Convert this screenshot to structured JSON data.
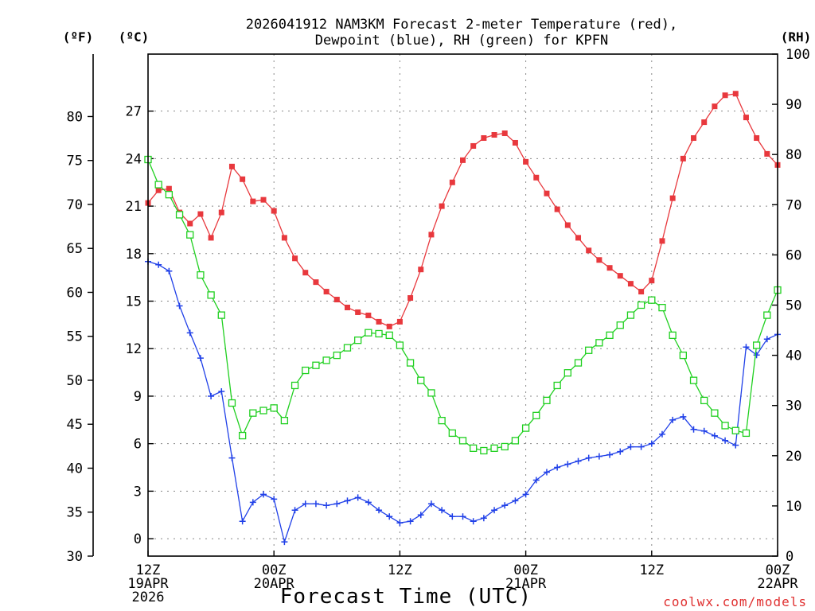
{
  "chart_data": {
    "type": "line",
    "title_line1": "2026041912 NAM3KM Forecast 2-meter Temperature (red),",
    "title_line2": "Dewpoint (blue), RH (green) for KPFN",
    "xlabel": "Forecast Time (UTC)",
    "credit": "coolwx.com/models",
    "units": {
      "fahrenheit": "(ºF)",
      "celsius": "(ºC)",
      "rh": "(RH)"
    },
    "x_range_hours": [
      0,
      60
    ],
    "celsius_range": [
      -1.1,
      30.6
    ],
    "fahrenheit_range": [
      30,
      87.1
    ],
    "rh_range": [
      0,
      100
    ],
    "x_ticks": [
      {
        "hour": 0,
        "lines": [
          "12Z",
          "19APR",
          "2026"
        ]
      },
      {
        "hour": 12,
        "lines": [
          "00Z",
          "20APR"
        ]
      },
      {
        "hour": 24,
        "lines": [
          "12Z"
        ]
      },
      {
        "hour": 36,
        "lines": [
          "00Z",
          "21APR"
        ]
      },
      {
        "hour": 48,
        "lines": [
          "12Z"
        ]
      },
      {
        "hour": 60,
        "lines": [
          "00Z",
          "22APR"
        ]
      }
    ],
    "celsius_ticks": [
      "0",
      "3",
      "6",
      "9",
      "12",
      "15",
      "18",
      "21",
      "24",
      "27"
    ],
    "fahrenheit_ticks": [
      "30",
      "35",
      "40",
      "45",
      "50",
      "55",
      "60",
      "65",
      "70",
      "75",
      "80"
    ],
    "rh_ticks": [
      "0",
      "10",
      "20",
      "30",
      "40",
      "50",
      "60",
      "70",
      "80",
      "90",
      "100"
    ],
    "series": [
      {
        "name": "2-meter Temperature (°C)",
        "color": "#e8383d",
        "marker": "filled-square",
        "axis": "celsius",
        "x": [
          0,
          1,
          2,
          3,
          4,
          5,
          6,
          7,
          8,
          9,
          10,
          11,
          12,
          13,
          14,
          15,
          16,
          17,
          18,
          19,
          20,
          21,
          22,
          23,
          24,
          25,
          26,
          27,
          28,
          29,
          30,
          31,
          32,
          33,
          34,
          35,
          36,
          37,
          38,
          39,
          40,
          41,
          42,
          43,
          44,
          45,
          46,
          47,
          48,
          49,
          50,
          51,
          52,
          53,
          54,
          55,
          56,
          57,
          58,
          59,
          60
        ],
        "values": [
          21.2,
          22.0,
          22.1,
          20.6,
          19.9,
          20.5,
          19.0,
          20.6,
          23.5,
          22.7,
          21.3,
          21.4,
          20.7,
          19.0,
          17.7,
          16.8,
          16.2,
          15.6,
          15.1,
          14.6,
          14.3,
          14.1,
          13.7,
          13.4,
          13.7,
          15.2,
          17.0,
          19.2,
          21.0,
          22.5,
          23.9,
          24.8,
          25.3,
          25.5,
          25.6,
          25.0,
          23.8,
          22.8,
          21.8,
          20.8,
          19.8,
          19.0,
          18.2,
          17.6,
          17.1,
          16.6,
          16.1,
          15.6,
          16.3,
          18.8,
          21.5,
          24.0,
          25.3,
          26.3,
          27.3,
          28.0,
          28.1,
          26.6,
          25.3,
          24.3,
          23.6
        ]
      },
      {
        "name": "Dewpoint (°C)",
        "color": "#2040e8",
        "marker": "plus",
        "axis": "celsius",
        "x": [
          0,
          1,
          2,
          3,
          4,
          5,
          6,
          7,
          8,
          9,
          10,
          11,
          12,
          13,
          14,
          15,
          16,
          17,
          18,
          19,
          20,
          21,
          22,
          23,
          24,
          25,
          26,
          27,
          28,
          29,
          30,
          31,
          32,
          33,
          34,
          35,
          36,
          37,
          38,
          39,
          40,
          41,
          42,
          43,
          44,
          45,
          46,
          47,
          48,
          49,
          50,
          51,
          52,
          53,
          54,
          55,
          56,
          57,
          58,
          59,
          60
        ],
        "values": [
          17.5,
          17.3,
          16.9,
          14.7,
          13.0,
          11.4,
          9.0,
          9.3,
          5.1,
          1.1,
          2.3,
          2.8,
          2.5,
          -0.2,
          1.8,
          2.2,
          2.2,
          2.1,
          2.2,
          2.4,
          2.6,
          2.3,
          1.8,
          1.4,
          1.0,
          1.1,
          1.5,
          2.2,
          1.8,
          1.4,
          1.4,
          1.1,
          1.3,
          1.8,
          2.1,
          2.4,
          2.8,
          3.7,
          4.2,
          4.5,
          4.7,
          4.9,
          5.1,
          5.2,
          5.3,
          5.5,
          5.8,
          5.8,
          6.0,
          6.6,
          7.5,
          7.7,
          6.9,
          6.8,
          6.5,
          6.2,
          5.9,
          12.1,
          11.6,
          12.6,
          12.9
        ]
      },
      {
        "name": "Relative Humidity (%)",
        "color": "#20d020",
        "marker": "open-square",
        "axis": "rh",
        "x": [
          0,
          1,
          2,
          3,
          4,
          5,
          6,
          7,
          8,
          9,
          10,
          11,
          12,
          13,
          14,
          15,
          16,
          17,
          18,
          19,
          20,
          21,
          22,
          23,
          24,
          25,
          26,
          27,
          28,
          29,
          30,
          31,
          32,
          33,
          34,
          35,
          36,
          37,
          38,
          39,
          40,
          41,
          42,
          43,
          44,
          45,
          46,
          47,
          48,
          49,
          50,
          51,
          52,
          53,
          54,
          55,
          56,
          57,
          58,
          59,
          60
        ],
        "values": [
          79,
          74,
          72,
          68,
          64,
          56,
          52,
          48,
          30.5,
          24,
          28.5,
          29,
          29.5,
          27,
          34,
          37,
          38,
          39,
          40,
          41.5,
          43,
          44.5,
          44.3,
          44,
          42,
          38.5,
          35,
          32.5,
          27,
          24.5,
          23,
          21.5,
          21,
          21.5,
          21.8,
          23,
          25.5,
          28,
          31,
          34,
          36.5,
          38.5,
          41,
          42.5,
          44,
          46,
          48,
          50,
          51,
          49.5,
          44,
          40,
          35,
          31,
          28.5,
          26,
          25,
          24.5,
          42,
          48,
          53
        ]
      }
    ]
  }
}
